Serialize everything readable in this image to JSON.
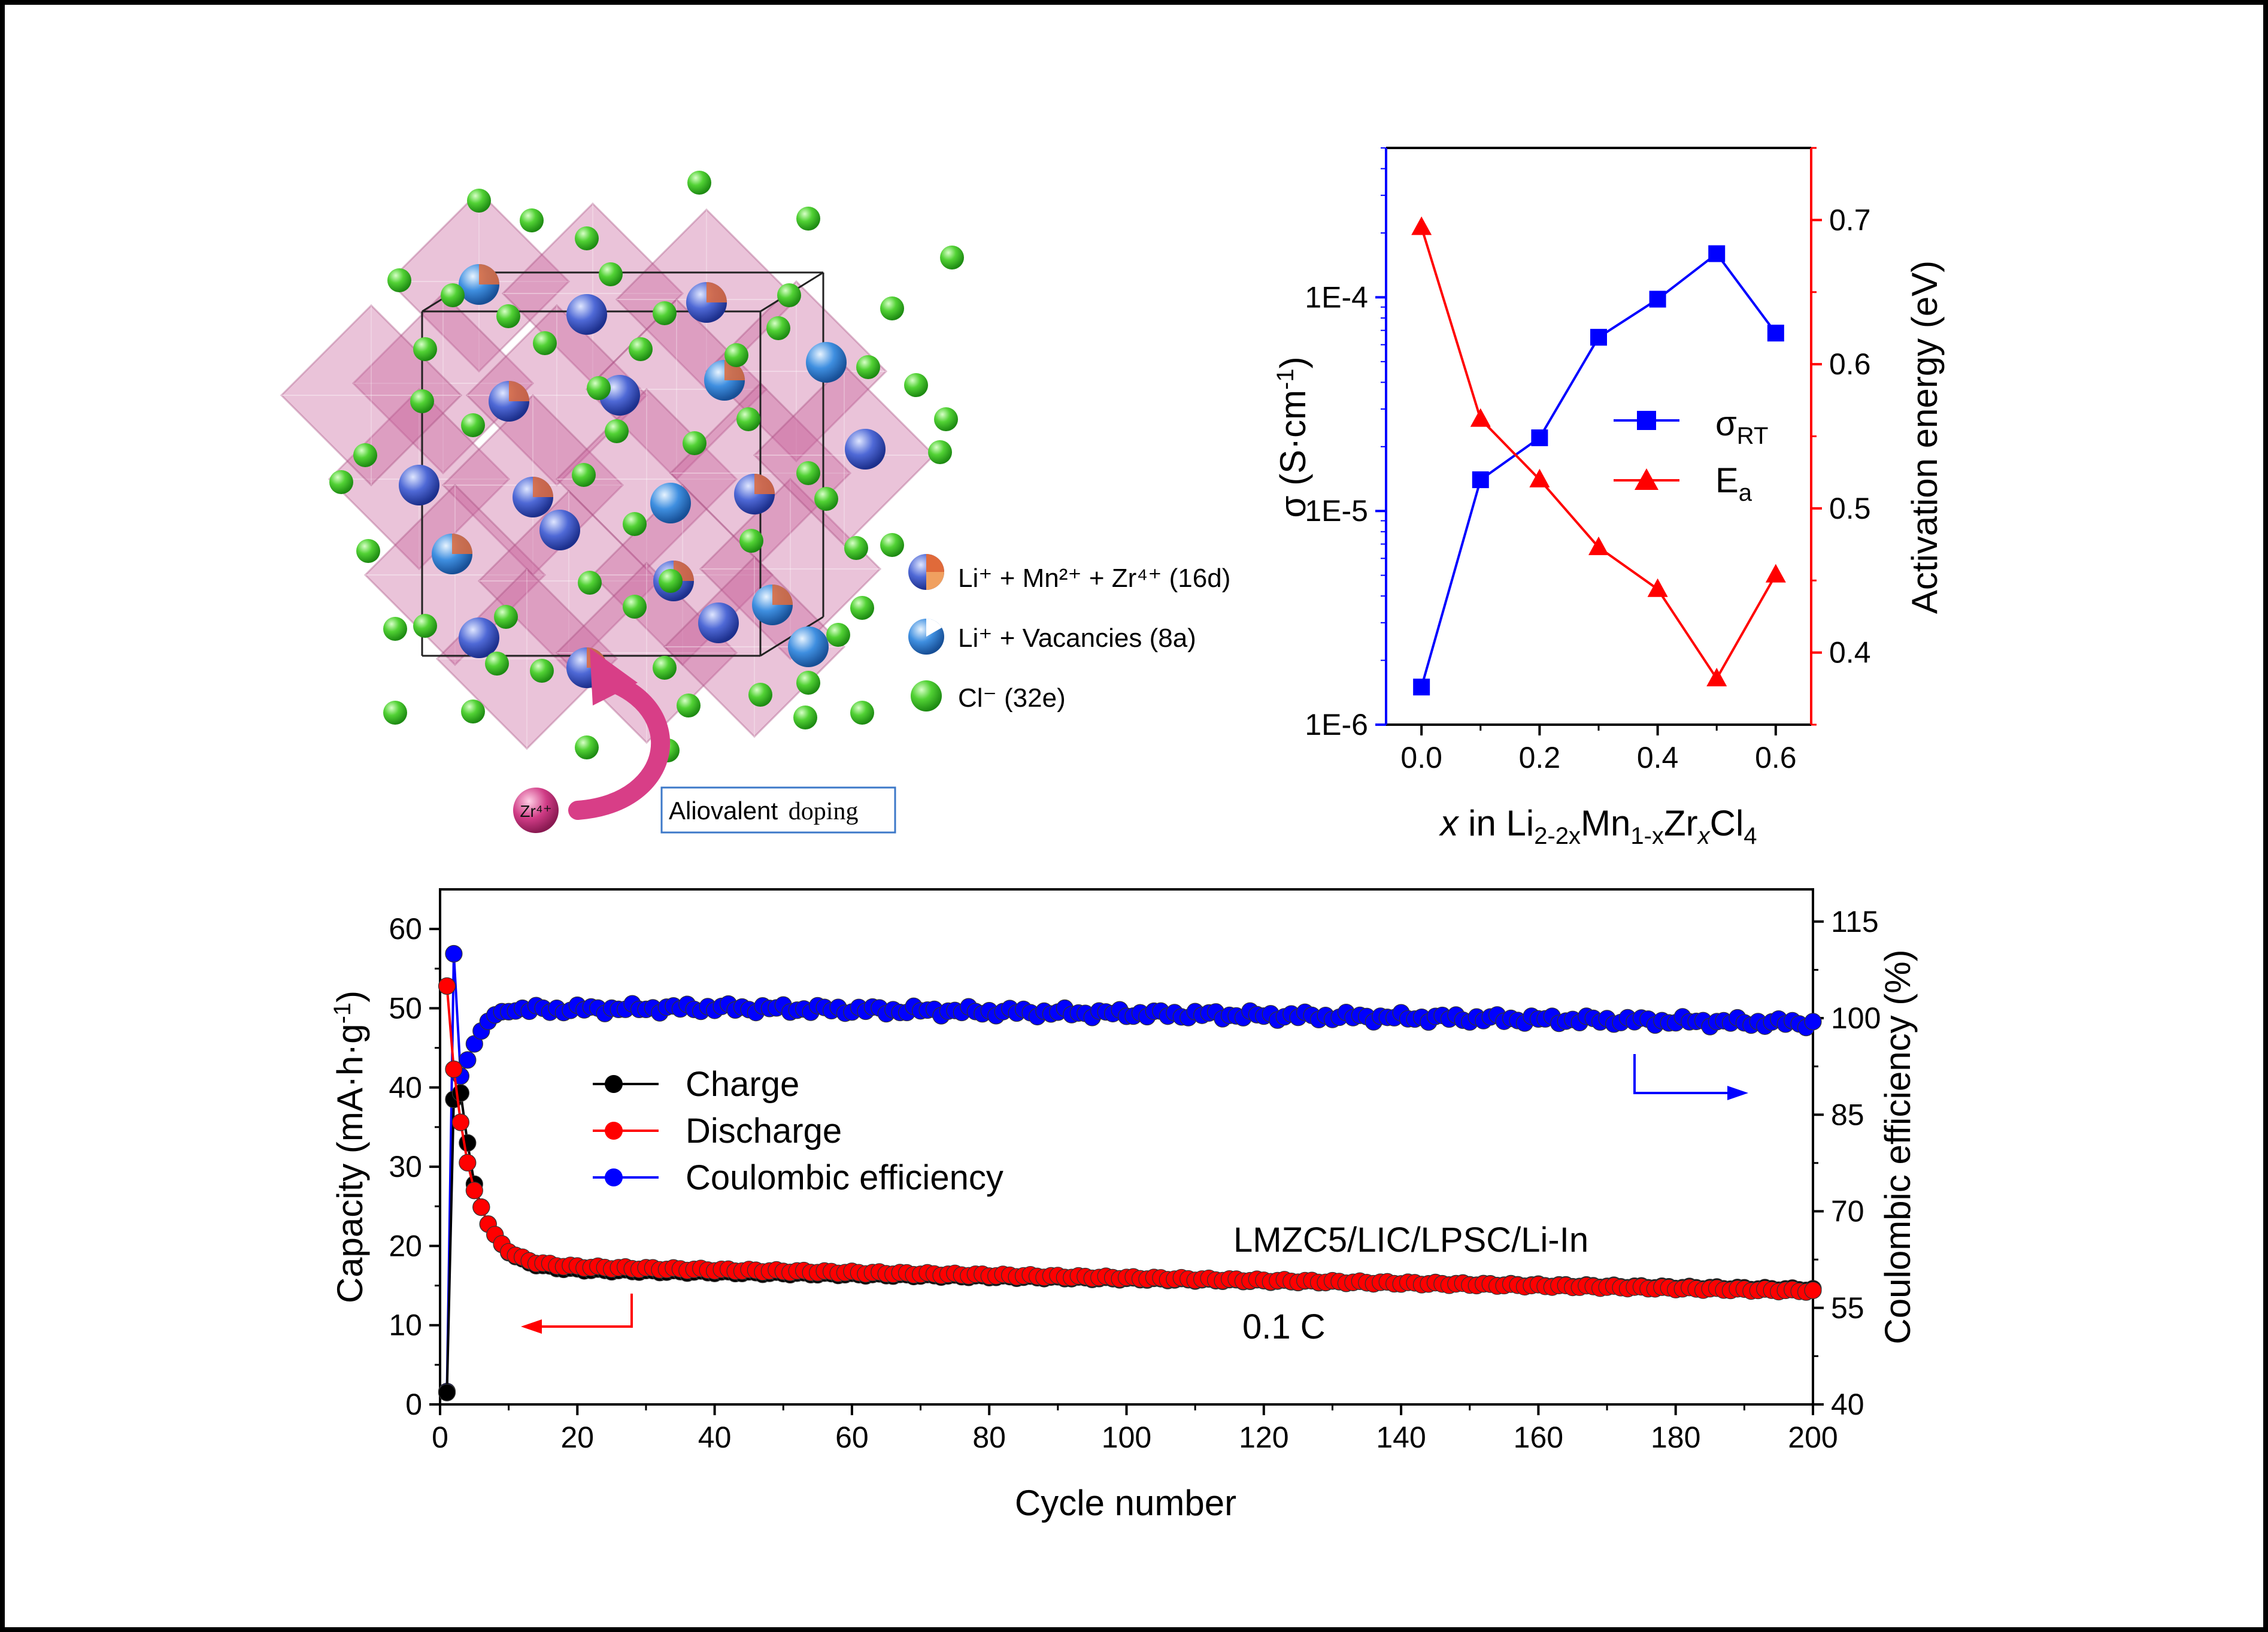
{
  "structure": {
    "legend": [
      {
        "label": "Li⁺ + Mn²⁺ + Zr⁴⁺ (16d)",
        "icon": "mixed-cation-sphere-icon"
      },
      {
        "label": "Li⁺ + Vacancies (8a)",
        "icon": "li-vacancy-sphere-icon"
      },
      {
        "label": "Cl⁻ (32e)",
        "icon": "chloride-sphere-icon"
      }
    ],
    "dopant_label": "Zr⁴⁺",
    "doping_box_text_1": "Aliovalent",
    "doping_box_text_2": "doping",
    "colors": {
      "polyhedra": "#c8609a",
      "chlorine": "#39c21f",
      "cation": "#4a5fcf"
    }
  },
  "chart_data": [
    {
      "type": "line",
      "xlabel": "x in Li2-2xMn1-xZrxCl4",
      "xlabel_parts": [
        "x",
        " in Li",
        "2-2x",
        "Mn",
        "1-x",
        "Zr",
        "x",
        "Cl",
        "4"
      ],
      "ylabel": "σ (S·cm-1)",
      "ylabel_parts": [
        "σ (S·cm",
        "-1",
        ")"
      ],
      "ylabel_right": "Activation energy (eV)",
      "xlim": [
        -0.06,
        0.66
      ],
      "ylim": [
        1e-06,
        0.0005
      ],
      "y_scale": "log",
      "ylim_right": [
        0.35,
        0.75
      ],
      "x_ticks": [
        "0.0",
        "0.2",
        "0.4",
        "0.6"
      ],
      "y_ticks": [
        "1E-6",
        "1E-5",
        "1E-4"
      ],
      "y_ticks_right": [
        "0.4",
        "0.5",
        "0.6",
        "0.7"
      ],
      "legend_position": "center-right",
      "series": [
        {
          "name": "σRT",
          "name_parts": [
            "σ",
            "RT"
          ],
          "axis": "left",
          "marker": "square",
          "color": "#0000ff",
          "x": [
            0.0,
            0.1,
            0.2,
            0.3,
            0.4,
            0.5,
            0.6
          ],
          "values": [
            1.5e-06,
            1.4e-05,
            2.2e-05,
            6.5e-05,
            9.8e-05,
            0.00016,
            6.8e-05
          ]
        },
        {
          "name": "Ea",
          "name_parts": [
            "E",
            "a"
          ],
          "axis": "right",
          "marker": "triangle",
          "color": "#ff0000",
          "x": [
            0.0,
            0.1,
            0.2,
            0.3,
            0.4,
            0.5,
            0.6
          ],
          "values": [
            0.695,
            0.562,
            0.52,
            0.473,
            0.444,
            0.382,
            0.454
          ]
        }
      ]
    },
    {
      "type": "scatter",
      "xlabel": "Cycle number",
      "ylabel": "Capacity (mA·h·g-1)",
      "ylabel_parts": [
        "Capacity (mA·h·g",
        "-1",
        ")"
      ],
      "ylabel_right": "Coulombic efficiency (%)",
      "xlim": [
        0,
        200
      ],
      "ylim": [
        0,
        65
      ],
      "ylim_right": [
        40,
        120
      ],
      "x_ticks": [
        "0",
        "20",
        "40",
        "60",
        "80",
        "100",
        "120",
        "140",
        "160",
        "180",
        "200"
      ],
      "y_ticks": [
        "0",
        "10",
        "20",
        "30",
        "40",
        "50",
        "60"
      ],
      "y_ticks_right": [
        "40",
        "55",
        "70",
        "85",
        "100",
        "115"
      ],
      "legend_position": "center-left",
      "annotations": {
        "cell": "LMZC5/LIC/LPSC/Li-In",
        "rate": "0.1 C"
      },
      "series": [
        {
          "name": "Charge",
          "color": "#000000",
          "early_cycles": [
            1,
            2,
            3,
            4,
            5
          ],
          "early_values": [
            1.5,
            38.5,
            39.3,
            33.0,
            27.8
          ],
          "trend": {
            "from_cycle": 6,
            "to_cycle": 200,
            "start_value": 25.0,
            "plateau_value": 17.0,
            "end_value": 14.5,
            "decay_cycles": 3.2
          }
        },
        {
          "name": "Discharge",
          "color": "#ff0000",
          "early_cycles": [
            1,
            2,
            3,
            4,
            5
          ],
          "early_values": [
            52.8,
            42.3,
            35.6,
            30.5,
            27.0
          ],
          "trend": {
            "from_cycle": 6,
            "to_cycle": 200,
            "start_value": 25.0,
            "plateau_value": 17.4,
            "end_value": 14.3,
            "decay_cycles": 3.0
          }
        },
        {
          "name": "Coulombic efficiency",
          "color": "#0000ff",
          "early_cycles": [
            1,
            2,
            3,
            4,
            5,
            6,
            7,
            8,
            9,
            10
          ],
          "early_values": [
            42.0,
            110.0,
            91.0,
            93.5,
            96.0,
            98.0,
            99.5,
            100.5,
            101.0,
            101.0
          ],
          "trend": {
            "from_cycle": 11,
            "to_cycle": 200,
            "start_value": 101.3,
            "mid_cycle": 40,
            "mid_value": 101.6,
            "end_value": 99.2
          }
        }
      ]
    }
  ]
}
